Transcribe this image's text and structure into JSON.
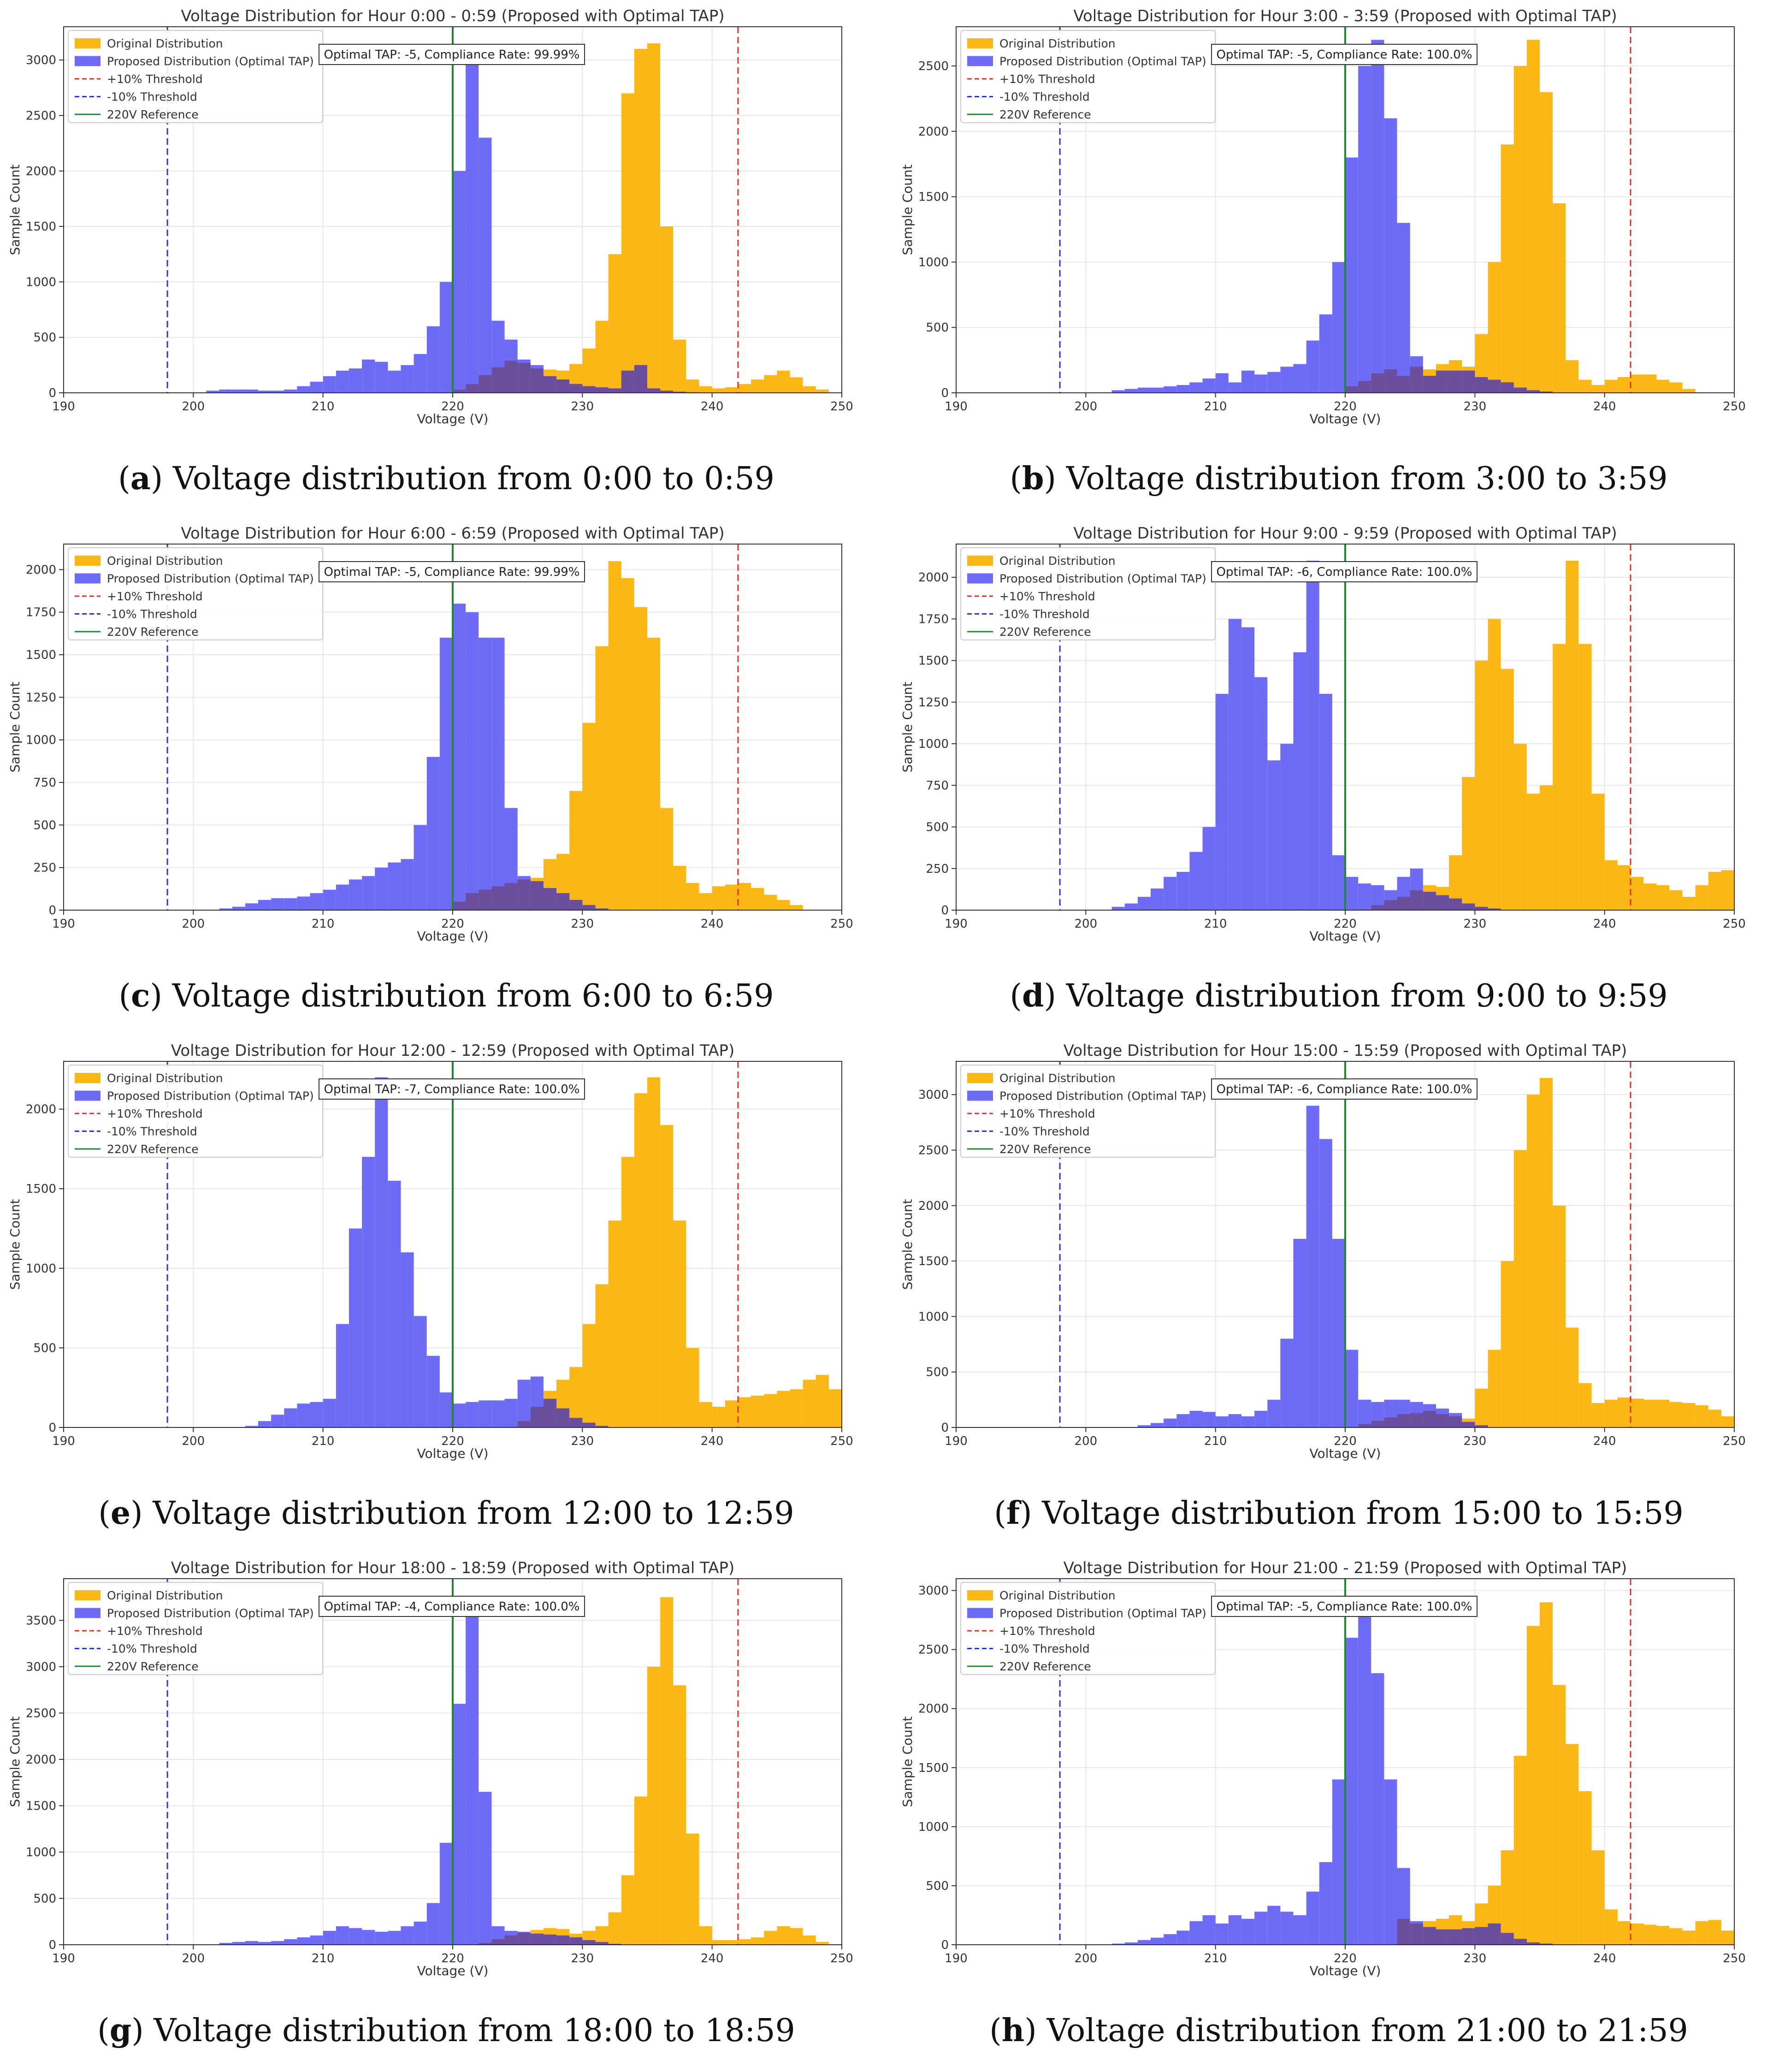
{
  "common": {
    "xlabel": "Voltage (V)",
    "ylabel": "Sample Count",
    "xlim": [
      190,
      250
    ],
    "xticks": [
      190,
      200,
      210,
      220,
      230,
      240,
      250
    ],
    "bin_start": 196,
    "bin_width": 1,
    "ref_lines": {
      "minus10": 198,
      "reference": 220,
      "plus10": 242
    },
    "legend": [
      "Original Distribution",
      "Proposed Distribution (Optimal TAP)",
      "+10% Threshold",
      "-10% Threshold",
      "220V Reference"
    ],
    "colors": {
      "original": "#fbb814",
      "proposed": "#6e6cf6",
      "overlap": "#6b4a8f",
      "plus10": "#e53030",
      "minus10": "#2a35d8",
      "reference": "#1c8a2c",
      "grid": "#e6e6e6",
      "text": "#333333"
    }
  },
  "chart_data": [
    {
      "type": "bar",
      "panel_letter": "a",
      "caption": "Voltage distribution from 0:00 to 0:59",
      "title": "Voltage Distribution for Hour 0:00 - 0:59 (Proposed with Optimal TAP)",
      "annotation": "Optimal TAP: -5, Compliance Rate: 99.99%",
      "ylim": [
        0,
        3300
      ],
      "yticks": [
        0,
        500,
        1000,
        1500,
        2000,
        2500,
        3000
      ],
      "xlabel": "Voltage (V)",
      "ylabel": "Sample Count",
      "original": [
        0,
        0,
        0,
        0,
        0,
        0,
        0,
        0,
        0,
        0,
        0,
        0,
        0,
        0,
        0,
        0,
        0,
        0,
        0,
        0,
        0,
        0,
        0,
        0,
        30,
        80,
        160,
        230,
        290,
        270,
        220,
        210,
        200,
        260,
        400,
        650,
        1250,
        2700,
        3100,
        3150,
        1500,
        480,
        120,
        60,
        40,
        50,
        80,
        120,
        160,
        200,
        140,
        60,
        30,
        0
      ],
      "proposed": [
        0,
        0,
        0,
        0,
        0,
        20,
        30,
        30,
        30,
        20,
        20,
        30,
        60,
        100,
        150,
        200,
        220,
        300,
        280,
        200,
        250,
        350,
        600,
        1000,
        2000,
        3000,
        2300,
        650,
        480,
        300,
        250,
        150,
        120,
        80,
        60,
        50,
        40,
        200,
        250,
        40,
        20,
        10,
        5,
        0,
        0,
        0,
        0,
        0,
        0,
        0,
        0,
        0,
        0,
        0
      ]
    },
    {
      "type": "bar",
      "panel_letter": "b",
      "caption": "Voltage distribution from 3:00 to 3:59",
      "title": "Voltage Distribution for Hour 3:00 - 3:59 (Proposed with Optimal TAP)",
      "annotation": "Optimal TAP: -5, Compliance Rate: 100.0%",
      "ylim": [
        0,
        2800
      ],
      "yticks": [
        0,
        500,
        1000,
        1500,
        2000,
        2500
      ],
      "xlabel": "Voltage (V)",
      "ylabel": "Sample Count",
      "original": [
        0,
        0,
        0,
        0,
        0,
        0,
        0,
        0,
        0,
        0,
        0,
        0,
        0,
        0,
        0,
        0,
        0,
        0,
        0,
        0,
        0,
        0,
        0,
        0,
        50,
        90,
        150,
        180,
        130,
        200,
        180,
        220,
        250,
        200,
        450,
        1000,
        1900,
        2500,
        2700,
        2300,
        1450,
        250,
        100,
        60,
        100,
        120,
        140,
        140,
        100,
        80,
        30,
        0,
        0,
        0
      ],
      "proposed": [
        0,
        0,
        0,
        0,
        0,
        0,
        20,
        30,
        40,
        40,
        50,
        60,
        80,
        110,
        150,
        80,
        170,
        140,
        160,
        200,
        220,
        400,
        600,
        1000,
        1800,
        2500,
        2700,
        2100,
        1300,
        280,
        130,
        170,
        170,
        170,
        120,
        100,
        80,
        40,
        20,
        10,
        0,
        0,
        0,
        0,
        0,
        0,
        0,
        0,
        0,
        0,
        0,
        0,
        0,
        0
      ]
    },
    {
      "type": "bar",
      "panel_letter": "c",
      "caption": "Voltage distribution from 6:00 to 6:59",
      "title": "Voltage Distribution for Hour 6:00 - 6:59 (Proposed with Optimal TAP)",
      "annotation": "Optimal TAP: -5, Compliance Rate: 99.99%",
      "ylim": [
        0,
        2150
      ],
      "yticks": [
        0,
        250,
        500,
        750,
        1000,
        1250,
        1500,
        1750,
        2000
      ],
      "xlabel": "Voltage (V)",
      "ylabel": "Sample Count",
      "original": [
        0,
        0,
        0,
        0,
        0,
        0,
        0,
        0,
        0,
        0,
        0,
        0,
        0,
        0,
        0,
        0,
        0,
        0,
        0,
        0,
        0,
        0,
        0,
        0,
        50,
        100,
        120,
        140,
        160,
        180,
        190,
        300,
        330,
        700,
        1100,
        1550,
        2050,
        1950,
        1780,
        1600,
        600,
        260,
        160,
        100,
        140,
        150,
        160,
        130,
        90,
        60,
        30,
        0,
        0,
        0
      ],
      "proposed": [
        0,
        0,
        0,
        0,
        0,
        0,
        10,
        20,
        40,
        60,
        70,
        70,
        80,
        100,
        120,
        150,
        180,
        200,
        250,
        280,
        300,
        500,
        900,
        1600,
        1800,
        1750,
        1600,
        1600,
        600,
        200,
        170,
        130,
        100,
        60,
        30,
        10,
        0,
        0,
        0,
        0,
        0,
        0,
        0,
        0,
        0,
        0,
        0,
        0,
        0,
        0,
        0,
        0,
        0,
        0
      ]
    },
    {
      "type": "bar",
      "panel_letter": "d",
      "caption": "Voltage distribution from 9:00 to 9:59",
      "title": "Voltage Distribution for Hour 9:00 - 9:59 (Proposed with Optimal TAP)",
      "annotation": "Optimal TAP: -6, Compliance Rate: 100.0%",
      "ylim": [
        0,
        2200
      ],
      "yticks": [
        0,
        250,
        500,
        750,
        1000,
        1250,
        1500,
        1750,
        2000
      ],
      "xlabel": "Voltage (V)",
      "ylabel": "Sample Count",
      "original": [
        0,
        0,
        0,
        0,
        0,
        0,
        0,
        0,
        0,
        0,
        0,
        0,
        0,
        0,
        0,
        0,
        0,
        0,
        0,
        0,
        0,
        0,
        0,
        0,
        0,
        0,
        30,
        60,
        80,
        120,
        150,
        140,
        330,
        800,
        1500,
        1750,
        1450,
        1000,
        700,
        750,
        1600,
        2100,
        1600,
        700,
        300,
        270,
        200,
        160,
        150,
        120,
        80,
        150,
        230,
        240
      ],
      "proposed": [
        0,
        0,
        0,
        0,
        0,
        0,
        20,
        40,
        80,
        130,
        200,
        230,
        350,
        500,
        1300,
        1750,
        1700,
        1400,
        900,
        1000,
        1550,
        2100,
        1300,
        330,
        200,
        160,
        150,
        120,
        200,
        250,
        110,
        90,
        70,
        40,
        20,
        10,
        0,
        0,
        0,
        0,
        0,
        0,
        0,
        0,
        0,
        0,
        0,
        0,
        0,
        0,
        0,
        0,
        0,
        0
      ]
    },
    {
      "type": "bar",
      "panel_letter": "e",
      "caption": "Voltage distribution from 12:00 to 12:59",
      "title": "Voltage Distribution for Hour 12:00 - 12:59 (Proposed with Optimal TAP)",
      "annotation": "Optimal TAP: -7, Compliance Rate: 100.0%",
      "ylim": [
        0,
        2300
      ],
      "yticks": [
        0,
        500,
        1000,
        1500,
        2000
      ],
      "xlabel": "Voltage (V)",
      "ylabel": "Sample Count",
      "original": [
        0,
        0,
        0,
        0,
        0,
        0,
        0,
        0,
        0,
        0,
        0,
        0,
        0,
        0,
        0,
        0,
        0,
        0,
        0,
        0,
        0,
        0,
        0,
        0,
        0,
        0,
        0,
        0,
        0,
        40,
        130,
        230,
        300,
        380,
        650,
        900,
        1300,
        1700,
        2100,
        2200,
        1900,
        1300,
        500,
        160,
        130,
        170,
        190,
        200,
        210,
        230,
        240,
        300,
        330,
        240
      ],
      "proposed": [
        0,
        0,
        0,
        0,
        0,
        0,
        0,
        0,
        10,
        40,
        80,
        120,
        150,
        160,
        180,
        650,
        1250,
        1700,
        2200,
        1550,
        1100,
        700,
        450,
        220,
        150,
        160,
        170,
        170,
        180,
        300,
        320,
        180,
        120,
        60,
        30,
        10,
        0,
        0,
        0,
        0,
        0,
        0,
        0,
        0,
        0,
        0,
        0,
        0,
        0,
        0,
        0,
        0,
        0,
        0
      ]
    },
    {
      "type": "bar",
      "panel_letter": "f",
      "caption": "Voltage distribution from 15:00 to 15:59",
      "title": "Voltage Distribution for Hour 15:00 - 15:59 (Proposed with Optimal TAP)",
      "annotation": "Optimal TAP: -6, Compliance Rate: 100.0%",
      "ylim": [
        0,
        3300
      ],
      "yticks": [
        0,
        500,
        1000,
        1500,
        2000,
        2500,
        3000
      ],
      "xlabel": "Voltage (V)",
      "ylabel": "Sample Count",
      "original": [
        0,
        0,
        0,
        0,
        0,
        0,
        0,
        0,
        0,
        0,
        0,
        0,
        0,
        0,
        0,
        0,
        0,
        0,
        0,
        0,
        0,
        0,
        0,
        0,
        0,
        30,
        60,
        90,
        120,
        130,
        150,
        120,
        100,
        80,
        350,
        700,
        1500,
        2500,
        3000,
        3150,
        2000,
        900,
        400,
        220,
        250,
        270,
        260,
        250,
        250,
        230,
        220,
        200,
        160,
        100
      ],
      "proposed": [
        0,
        0,
        0,
        0,
        0,
        0,
        0,
        0,
        20,
        40,
        80,
        120,
        150,
        140,
        100,
        120,
        100,
        150,
        250,
        800,
        1700,
        2900,
        2600,
        1700,
        700,
        250,
        230,
        250,
        250,
        230,
        210,
        170,
        130,
        50,
        20,
        0,
        0,
        0,
        0,
        0,
        0,
        0,
        0,
        0,
        0,
        0,
        0,
        0,
        0,
        0,
        0,
        0,
        0,
        0
      ]
    },
    {
      "type": "bar",
      "panel_letter": "g",
      "caption": "Voltage distribution from 18:00 to 18:59",
      "title": "Voltage Distribution for Hour 18:00 - 18:59 (Proposed with Optimal TAP)",
      "annotation": "Optimal TAP: -4, Compliance Rate: 100.0%",
      "ylim": [
        0,
        3950
      ],
      "yticks": [
        0,
        500,
        1000,
        1500,
        2000,
        2500,
        3000,
        3500
      ],
      "xlabel": "Voltage (V)",
      "ylabel": "Sample Count",
      "original": [
        0,
        0,
        0,
        0,
        0,
        0,
        0,
        0,
        0,
        0,
        0,
        0,
        0,
        0,
        0,
        0,
        0,
        0,
        0,
        0,
        0,
        0,
        0,
        0,
        0,
        0,
        20,
        60,
        100,
        130,
        160,
        180,
        170,
        120,
        150,
        200,
        350,
        750,
        1600,
        3000,
        3750,
        2800,
        1200,
        200,
        50,
        50,
        60,
        80,
        150,
        200,
        180,
        100,
        30,
        0
      ],
      "proposed": [
        0,
        0,
        0,
        0,
        0,
        0,
        20,
        30,
        40,
        30,
        40,
        60,
        80,
        100,
        150,
        200,
        180,
        160,
        140,
        150,
        200,
        250,
        450,
        1100,
        2600,
        3700,
        1650,
        200,
        150,
        140,
        120,
        110,
        100,
        80,
        50,
        30,
        10,
        0,
        0,
        0,
        0,
        0,
        0,
        0,
        0,
        0,
        0,
        0,
        0,
        0,
        0,
        0,
        0,
        0,
        0,
        0
      ]
    },
    {
      "type": "bar",
      "panel_letter": "h",
      "caption": "Voltage distribution from 21:00 to 21:59",
      "title": "Voltage Distribution for Hour 21:00 - 21:59 (Proposed with Optimal TAP)",
      "annotation": "Optimal TAP: -5, Compliance Rate: 100.0%",
      "ylim": [
        0,
        3100
      ],
      "yticks": [
        0,
        500,
        1000,
        1500,
        2000,
        2500,
        3000
      ],
      "xlabel": "Voltage (V)",
      "ylabel": "Sample Count",
      "original": [
        0,
        0,
        0,
        0,
        0,
        0,
        0,
        0,
        0,
        0,
        0,
        0,
        0,
        0,
        0,
        0,
        0,
        0,
        0,
        0,
        0,
        0,
        0,
        0,
        0,
        0,
        0,
        0,
        220,
        180,
        200,
        220,
        250,
        200,
        350,
        500,
        800,
        1600,
        2700,
        2900,
        2200,
        1700,
        1300,
        800,
        300,
        200,
        180,
        170,
        160,
        140,
        120,
        200,
        210,
        120
      ],
      "proposed": [
        0,
        0,
        0,
        0,
        0,
        0,
        10,
        20,
        40,
        60,
        90,
        120,
        200,
        250,
        180,
        250,
        220,
        280,
        330,
        280,
        250,
        450,
        700,
        1400,
        2600,
        2950,
        2300,
        1400,
        650,
        200,
        150,
        130,
        130,
        140,
        150,
        180,
        100,
        50,
        20,
        10,
        0,
        0,
        0,
        0,
        0,
        0,
        0,
        0,
        0,
        0,
        0,
        0,
        0,
        0,
        0,
        0
      ]
    }
  ]
}
